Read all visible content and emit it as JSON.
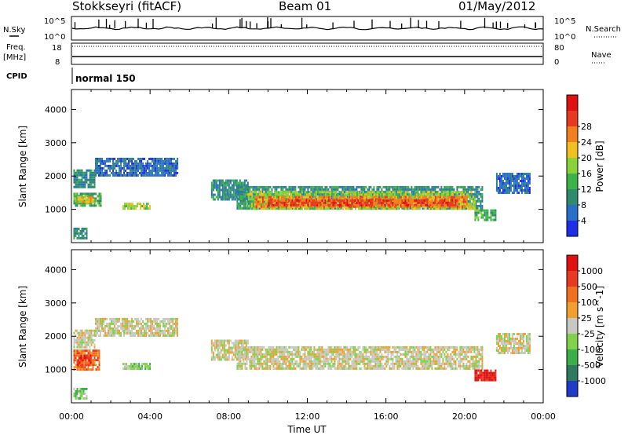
{
  "header": {
    "station": "Stokkseyri (fitACF)",
    "beam": "Beam 01",
    "date": "01/May/2012"
  },
  "top_panels": {
    "nsky_label": "N.Sky",
    "nsky_ticks": [
      "10^5",
      "10^0"
    ],
    "nsearch_label": "N.Search",
    "nsearch_ticks": [
      "10^5",
      "10^0"
    ],
    "freq_label": "Freq.",
    "freq_unit": "[MHz]",
    "freq_ticks": [
      "18",
      "8"
    ],
    "nave_label": "Nave",
    "nave_ticks": [
      "80",
      "0"
    ],
    "cpid_label": "CPID",
    "cpid_value": "normal 150"
  },
  "chart_data": [
    {
      "type": "heatmap",
      "panel": "power",
      "title": "",
      "xlabel": "",
      "ylabel": "Slant Range [km]",
      "ylim": [
        0,
        4600
      ],
      "yticks": [
        "1000",
        "2000",
        "3000",
        "4000"
      ],
      "xlim_hours": [
        0,
        24
      ],
      "colorbar_label": "Power [dB]",
      "colorbar_ticks": [
        "4",
        "8",
        "12",
        "16",
        "20",
        "24",
        "28"
      ],
      "colorbar_colors": [
        "#1e2ee6",
        "#2a6fc7",
        "#2f8a6e",
        "#3cb34a",
        "#8bd23a",
        "#f0c020",
        "#f08020",
        "#e83a22",
        "#e01010"
      ],
      "regions": [
        {
          "t_start": 0.1,
          "t_end": 1.2,
          "r_start": 1700,
          "r_end": 2200,
          "level": 2
        },
        {
          "t_start": 0.1,
          "t_end": 1.5,
          "r_start": 1100,
          "r_end": 1500,
          "level": 3
        },
        {
          "t_start": 0.3,
          "t_end": 1.1,
          "r_start": 1200,
          "r_end": 1400,
          "level": 5
        },
        {
          "t_start": 1.2,
          "t_end": 5.4,
          "r_start": 2050,
          "r_end": 2550,
          "level": 1
        },
        {
          "t_start": 2.6,
          "t_end": 4.0,
          "r_start": 1000,
          "r_end": 1200,
          "level": 4
        },
        {
          "t_start": 7.1,
          "t_end": 9.0,
          "r_start": 1300,
          "r_end": 1900,
          "level": 2
        },
        {
          "t_start": 8.4,
          "t_end": 20.9,
          "r_start": 1000,
          "r_end": 1700,
          "level": 2
        },
        {
          "t_start": 8.9,
          "t_end": 20.5,
          "r_start": 1050,
          "r_end": 1550,
          "level": 4
        },
        {
          "t_start": 9.3,
          "t_end": 20.1,
          "r_start": 1100,
          "r_end": 1400,
          "level": 6
        },
        {
          "t_start": 10.0,
          "t_end": 19.6,
          "r_start": 1150,
          "r_end": 1300,
          "level": 7
        },
        {
          "t_start": 20.5,
          "t_end": 21.6,
          "r_start": 700,
          "r_end": 1000,
          "level": 3
        },
        {
          "t_start": 21.6,
          "t_end": 23.3,
          "r_start": 1500,
          "r_end": 2100,
          "level": 1
        },
        {
          "t_start": 0.1,
          "t_end": 0.8,
          "r_start": 150,
          "r_end": 450,
          "level": 2
        }
      ]
    },
    {
      "type": "heatmap",
      "panel": "velocity",
      "title": "",
      "xlabel": "Time UT",
      "ylabel": "Slant Range [km]",
      "ylim": [
        0,
        4600
      ],
      "yticks": [
        "1000",
        "2000",
        "3000",
        "4000"
      ],
      "xlim_hours": [
        0,
        24
      ],
      "xticks": [
        "00:00",
        "04:00",
        "08:00",
        "12:00",
        "16:00",
        "20:00",
        "00:00"
      ],
      "colorbar_label": "Velocity [m s^-1]",
      "colorbar_ticks": [
        "1000",
        "500",
        "100",
        "25",
        "-25",
        "-100",
        "-500",
        "-1000"
      ],
      "colorbar_colors": [
        "#1e3cc8",
        "#2f7a5e",
        "#3cae4a",
        "#7fd24a",
        "#c8c8c0",
        "#f0a030",
        "#f07020",
        "#e83a22",
        "#e01010"
      ],
      "regions": [
        {
          "t_start": 0.1,
          "t_end": 1.2,
          "r_start": 1700,
          "r_end": 2200,
          "level": 4
        },
        {
          "t_start": 0.1,
          "t_end": 1.4,
          "r_start": 1000,
          "r_end": 1600,
          "level": 6
        },
        {
          "t_start": 0.3,
          "t_end": 1.0,
          "r_start": 1150,
          "r_end": 1450,
          "level": 7
        },
        {
          "t_start": 1.2,
          "t_end": 5.4,
          "r_start": 2050,
          "r_end": 2550,
          "level": 4
        },
        {
          "t_start": 2.6,
          "t_end": 4.0,
          "r_start": 1000,
          "r_end": 1200,
          "level": 3
        },
        {
          "t_start": 7.1,
          "t_end": 9.0,
          "r_start": 1300,
          "r_end": 1900,
          "level": 4
        },
        {
          "t_start": 8.4,
          "t_end": 20.9,
          "r_start": 1000,
          "r_end": 1700,
          "level": 4
        },
        {
          "t_start": 20.5,
          "t_end": 21.6,
          "r_start": 700,
          "r_end": 1000,
          "level": 8
        },
        {
          "t_start": 21.6,
          "t_end": 23.3,
          "r_start": 1500,
          "r_end": 2100,
          "level": 4
        },
        {
          "t_start": 0.1,
          "t_end": 0.8,
          "r_start": 150,
          "r_end": 450,
          "level": 3
        }
      ]
    }
  ]
}
